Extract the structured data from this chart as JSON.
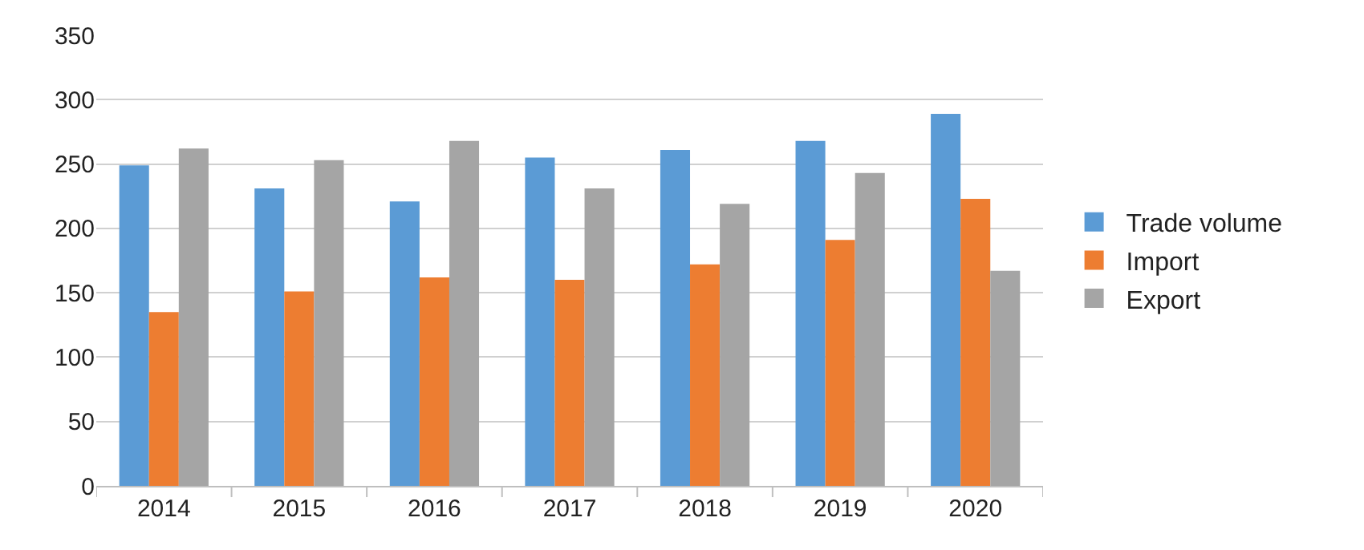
{
  "chart_data": {
    "type": "bar",
    "categories": [
      "2014",
      "2015",
      "2016",
      "2017",
      "2018",
      "2019",
      "2020"
    ],
    "series": [
      {
        "name": "Trade volume",
        "color": "#5b9bd5",
        "values": [
          249,
          231,
          221,
          255,
          261,
          268,
          289
        ]
      },
      {
        "name": "Import",
        "color": "#ed7d31",
        "values": [
          135,
          151,
          162,
          160,
          172,
          191,
          223
        ]
      },
      {
        "name": "Export",
        "color": "#a5a5a5",
        "values": [
          262,
          253,
          268,
          231,
          219,
          243,
          167
        ]
      }
    ],
    "ylim": [
      0,
      350
    ],
    "yticks": [
      0,
      50,
      100,
      150,
      200,
      250,
      300,
      350
    ],
    "grid": "y",
    "legend": "right"
  }
}
